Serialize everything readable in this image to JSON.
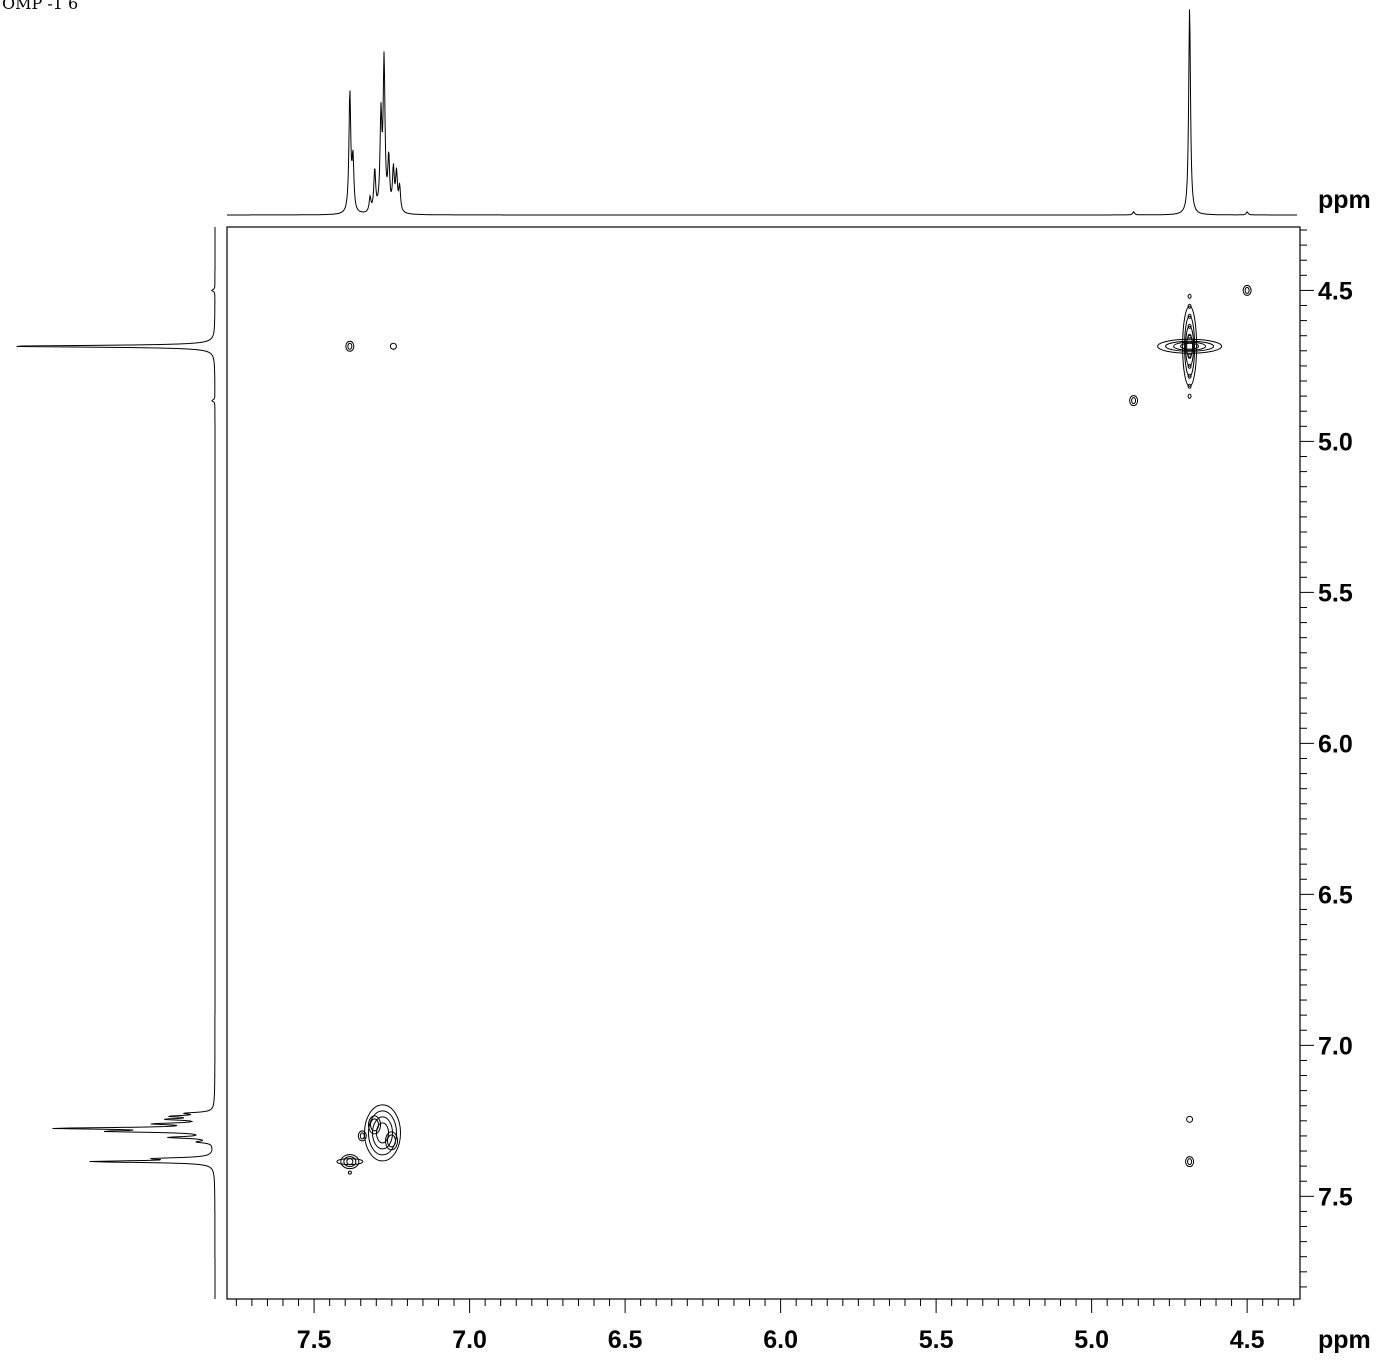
{
  "corner_text": "OMP -1 6",
  "chart_data": {
    "type": "scatter",
    "title": "",
    "xlabel": "ppm",
    "ylabel": "ppm",
    "xlim": [
      7.78,
      4.33
    ],
    "ylim": [
      4.29,
      7.84
    ],
    "x_axis_reversed": true,
    "x_ticks": [
      "7.5",
      "7.0",
      "6.5",
      "6.0",
      "5.5",
      "5.0",
      "4.5"
    ],
    "y_ticks": [
      "4.5",
      "5.0",
      "5.5",
      "6.0",
      "6.5",
      "7.0",
      "7.5"
    ],
    "grid": false,
    "legend": "none",
    "projection_peaks": [
      {
        "ppm": 7.385,
        "intensity": 0.58
      },
      {
        "ppm": 7.375,
        "intensity": 0.25
      },
      {
        "ppm": 7.32,
        "intensity": 0.07
      },
      {
        "ppm": 7.305,
        "intensity": 0.2
      },
      {
        "ppm": 7.285,
        "intensity": 0.45
      },
      {
        "ppm": 7.275,
        "intensity": 0.72
      },
      {
        "ppm": 7.26,
        "intensity": 0.25
      },
      {
        "ppm": 7.245,
        "intensity": 0.2
      },
      {
        "ppm": 7.235,
        "intensity": 0.18
      },
      {
        "ppm": 7.225,
        "intensity": 0.12
      },
      {
        "ppm": 4.865,
        "intensity": 0.015
      },
      {
        "ppm": 4.685,
        "intensity": 1.0
      },
      {
        "ppm": 4.5,
        "intensity": 0.015
      }
    ],
    "cross_peaks": [
      {
        "x": 4.685,
        "y": 4.685,
        "kind": "diagonal-strong"
      },
      {
        "x": 4.5,
        "y": 4.5,
        "kind": "small"
      },
      {
        "x": 4.865,
        "y": 4.865,
        "kind": "small"
      },
      {
        "x": 7.385,
        "y": 4.685,
        "kind": "small"
      },
      {
        "x": 7.245,
        "y": 4.685,
        "kind": "tiny"
      },
      {
        "x": 4.685,
        "y": 7.245,
        "kind": "tiny"
      },
      {
        "x": 4.685,
        "y": 7.385,
        "kind": "small"
      },
      {
        "x": 7.385,
        "y": 7.385,
        "kind": "cluster"
      },
      {
        "x": 7.28,
        "y": 7.29,
        "kind": "cluster"
      },
      {
        "x": 7.345,
        "y": 7.3,
        "kind": "small"
      }
    ]
  }
}
